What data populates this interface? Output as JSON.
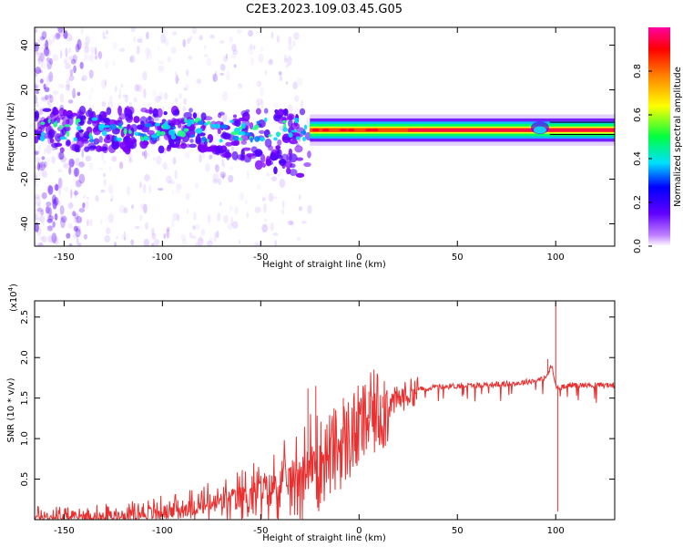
{
  "title": "C2E3.2023.109.03.45.G05",
  "chart_data": [
    {
      "type": "heatmap",
      "name": "spectrogram",
      "xlabel": "Height of straight line (km)",
      "ylabel": "Frequency (Hz)",
      "xlim": [
        -165,
        130
      ],
      "ylim": [
        -50,
        48
      ],
      "xticks": [
        -150,
        -100,
        -50,
        0,
        50,
        100
      ],
      "xtick_labels": [
        "-150",
        "-100",
        "-50",
        "0",
        "50",
        "100"
      ],
      "yticks": [
        -40,
        -20,
        0,
        20,
        40
      ],
      "ytick_labels": [
        "-40",
        "-20",
        "0",
        "20",
        "40"
      ],
      "colorbar": {
        "label": "Normalized spectral amplitude",
        "range": [
          0,
          1
        ],
        "ticks": [
          0.0,
          0.2,
          0.4,
          0.6,
          0.8
        ],
        "tick_labels": [
          "0.0",
          "0.2",
          "0.4",
          "0.6",
          "0.8"
        ],
        "colors": [
          "#ffffff",
          "#c080ff",
          "#6000ff",
          "#0000ff",
          "#00e0ff",
          "#00ff40",
          "#ffff00",
          "#ff8000",
          "#ff0000",
          "#ff00a0"
        ]
      },
      "signal_band": {
        "center_hz": 2,
        "spread_start_km": -35,
        "low_snr_end_km": -25
      }
    },
    {
      "type": "line",
      "name": "snr",
      "xlabel": "Height of straight line (km)",
      "ylabel": "SNR (10 * v/v)",
      "yscale_label": "(x10",
      "yscale_exp": "4",
      "xlim": [
        -165,
        130
      ],
      "ylim": [
        0,
        2.7
      ],
      "xticks": [
        -150,
        -100,
        -50,
        0,
        50,
        100
      ],
      "xtick_labels": [
        "-150",
        "-100",
        "-50",
        "0",
        "50",
        "100"
      ],
      "yticks": [
        0.5,
        1.0,
        1.5,
        2.0,
        2.5
      ],
      "ytick_labels": [
        "0.5",
        "1.0",
        "1.5",
        "2.0",
        "2.5"
      ],
      "series": [
        {
          "name": "SNR",
          "color": "#e83030",
          "x": [
            -165,
            -150,
            -130,
            -120,
            -110,
            -100,
            -90,
            -80,
            -70,
            -60,
            -50,
            -40,
            -35,
            -30,
            -25,
            -20,
            -15,
            -10,
            -5,
            0,
            5,
            10,
            15,
            20,
            25,
            30,
            40,
            50,
            60,
            70,
            80,
            85,
            90,
            95,
            98,
            100,
            102,
            105,
            110,
            120,
            130
          ],
          "y": [
            0.03,
            0.03,
            0.04,
            0.05,
            0.07,
            0.1,
            0.13,
            0.17,
            0.22,
            0.28,
            0.35,
            0.45,
            0.5,
            0.58,
            0.65,
            0.72,
            0.8,
            0.9,
            1.0,
            1.12,
            1.25,
            1.35,
            1.42,
            1.48,
            1.55,
            1.6,
            1.64,
            1.65,
            1.66,
            1.67,
            1.68,
            1.7,
            1.72,
            1.75,
            1.9,
            1.65,
            1.62,
            1.66,
            1.66,
            1.66,
            1.66
          ]
        }
      ],
      "spikes": [
        {
          "x": -26,
          "y": 1.62
        },
        {
          "x": -22,
          "y": 1.65
        },
        {
          "x": -8,
          "y": 1.5
        },
        {
          "x": 5,
          "y": 1.58
        },
        {
          "x": 7,
          "y": 1.47
        },
        {
          "x": 12,
          "y": 1.52
        },
        {
          "x": 96,
          "y": 1.98
        },
        {
          "x": 100,
          "y": 2.68
        },
        {
          "x": 101,
          "y": 0.1
        }
      ]
    }
  ]
}
